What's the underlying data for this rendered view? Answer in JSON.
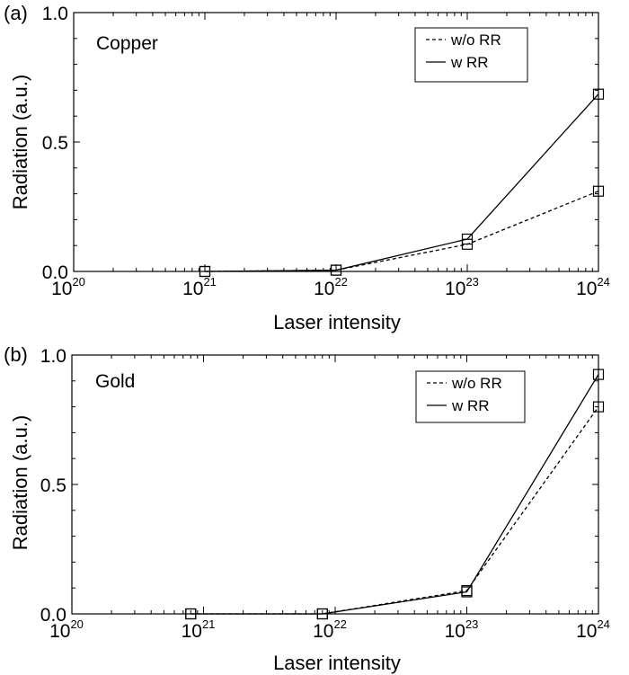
{
  "chart_data": [
    {
      "type": "line",
      "panel_label": "(a)",
      "material": "Copper",
      "xlabel": "Laser intensity",
      "ylabel": "Radiation (a.u.)",
      "xscale": "log",
      "x_tick_base": "10",
      "x_tick_exponents": [
        "20",
        "21",
        "22",
        "23",
        "24"
      ],
      "xlim": [
        1e+20,
        1e+24
      ],
      "ylim": [
        0,
        1.0
      ],
      "y_tick_values": [
        0,
        0.5,
        1.0
      ],
      "y_tick_labels": [
        "0.0",
        "0.5",
        "1.0"
      ],
      "legend_position": "top-right",
      "series": [
        {
          "name": "w/o RR",
          "style": "dashed",
          "x": [
            1e+21,
            1e+22,
            1e+23,
            1e+24
          ],
          "values": [
            0.0,
            0.005,
            0.105,
            0.31
          ]
        },
        {
          "name": "w RR",
          "style": "solid",
          "x": [
            1e+21,
            1e+22,
            1e+23,
            1e+24
          ],
          "values": [
            0.0,
            0.005,
            0.125,
            0.685
          ]
        }
      ]
    },
    {
      "type": "line",
      "panel_label": "(b)",
      "material": "Gold",
      "xlabel": "Laser intensity",
      "ylabel": "Radiation (a.u.)",
      "xscale": "log",
      "x_tick_base": "10",
      "x_tick_exponents": [
        "20",
        "21",
        "22",
        "23",
        "24"
      ],
      "xlim": [
        1e+20,
        1e+24
      ],
      "ylim": [
        0,
        1.0
      ],
      "y_tick_values": [
        0,
        0.5,
        1.0
      ],
      "y_tick_labels": [
        "0.0",
        "0.5",
        "1.0"
      ],
      "legend_position": "top-right",
      "series": [
        {
          "name": "w/o RR",
          "style": "dashed",
          "x": [
            8e+20,
            8e+21,
            1e+23,
            1e+24
          ],
          "values": [
            0.0,
            0.0,
            0.09,
            0.8
          ]
        },
        {
          "name": "w RR",
          "style": "solid",
          "x": [
            8e+20,
            8e+21,
            1e+23,
            1e+24
          ],
          "values": [
            0.0,
            0.0,
            0.085,
            0.925
          ]
        }
      ]
    }
  ]
}
